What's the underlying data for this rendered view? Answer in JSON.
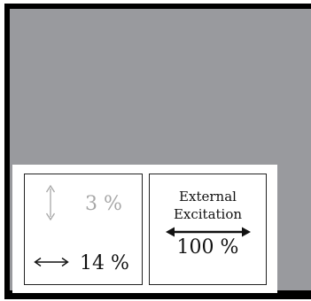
{
  "panel": {
    "small_vertical_percent": "3 %",
    "small_horizontal_percent": "14 %",
    "external_label_line1": "External",
    "external_label_line2": "Excitation",
    "external_percent": "100 %"
  },
  "colors": {
    "frame": "#000000",
    "background_gray": "#999a9e",
    "muted_text": "#a8a8a8",
    "text": "#111111"
  },
  "icons": {
    "vertical": "vertical-double-arrow-icon",
    "horizontal": "horizontal-double-arrow-icon",
    "external": "bold-horizontal-double-arrow-icon"
  }
}
